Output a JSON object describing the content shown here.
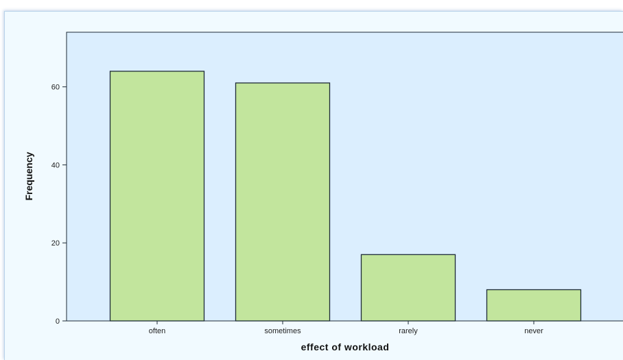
{
  "chart_data": {
    "type": "bar",
    "categories": [
      "often",
      "sometimes",
      "rarely",
      "never"
    ],
    "values": [
      64,
      61,
      17,
      8
    ],
    "xlabel": "effect of workload",
    "ylabel": "Frequency",
    "ylim": [
      0,
      74
    ],
    "yticks": [
      0,
      20,
      40,
      60
    ],
    "ytick_labels": [
      "0",
      "20",
      "40",
      "60"
    ],
    "grid": false,
    "legend": "none"
  },
  "colors": {
    "page_background": "#f1faff",
    "plot_background": "#dbeefe",
    "bar_fill": "#c2e59d",
    "bar_stroke": "#1d2b36",
    "axis": "#1d2b36"
  }
}
